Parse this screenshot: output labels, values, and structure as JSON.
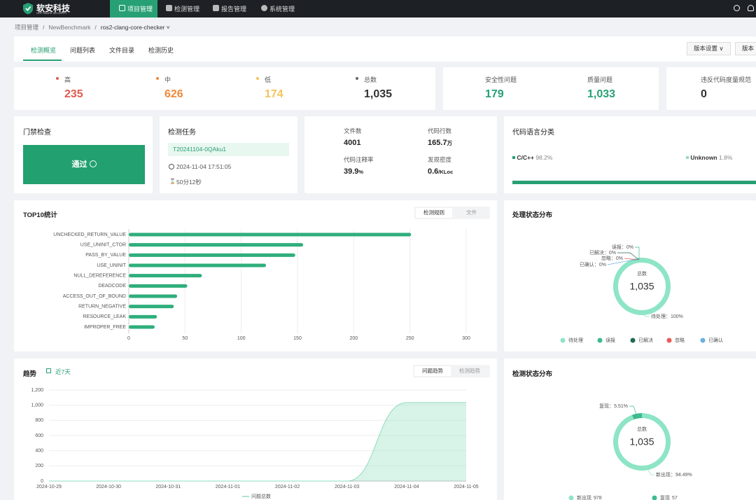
{
  "nav": {
    "brand": "软安科技",
    "brand_sub": "SOFTWARE SECURITY",
    "items": [
      "项目管理",
      "检测管理",
      "报告管理",
      "系统管理"
    ]
  },
  "breadcrumb": [
    "项目管理",
    "NewBenchmark",
    "ros2-clang-core-checker"
  ],
  "tabs": [
    "检测概览",
    "问题列表",
    "文件目录",
    "检测历史"
  ],
  "actions": [
    "版本设置",
    "版本"
  ],
  "severity": [
    {
      "label": "高",
      "value": "235"
    },
    {
      "label": "中",
      "value": "626"
    },
    {
      "label": "低",
      "value": "174"
    },
    {
      "label": "总数",
      "value": "1,035"
    }
  ],
  "category": [
    {
      "label": "安全性问题",
      "value": "179"
    },
    {
      "label": "质量问题",
      "value": "1,033"
    }
  ],
  "metrics_violation": {
    "label": "违反代码度量规范",
    "value": "0"
  },
  "gate": {
    "title": "门禁检查",
    "result": "通过"
  },
  "task": {
    "title": "检测任务",
    "id": "T20241104-0QAku1",
    "time": "2024-11-04 17:51:05",
    "duration": "50分12秒"
  },
  "stats": [
    {
      "label": "文件数",
      "value": "4001"
    },
    {
      "label": "代码行数",
      "value": "165.7",
      "unit": "万"
    },
    {
      "label": "代码注释率",
      "value": "39.9",
      "unit": "%"
    },
    {
      "label": "发现密度",
      "value": "0.6",
      "unit": "/KLoc"
    }
  ],
  "languages": {
    "title": "代码语言分类",
    "items": [
      {
        "name": "C/C++",
        "label": "98.2%",
        "value": 98.2,
        "color": "#27a074"
      },
      {
        "name": "Unknown",
        "label": "1.8%",
        "value": 1.8,
        "color": "#9ad9bf"
      }
    ]
  },
  "top10": {
    "title": "TOP10统计",
    "toggle": [
      "检测规则",
      "文件"
    ]
  },
  "trend": {
    "title": "趋势",
    "range": "近7天",
    "toggle": [
      "问题趋势",
      "检测趋势"
    ]
  },
  "chart_data": [
    {
      "type": "bar",
      "orientation": "horizontal",
      "categories": [
        "UNCHECKED_RETURN_VALUE",
        "USE_UNINIT_CTOR",
        "PASS_BY_VALUE",
        "USE_UNINIT",
        "NULL_DEREFERENCE",
        "DEADCODE",
        "ACCESS_OUT_OF_BOUND",
        "RETURN_NEGATIVE",
        "RESOURCE_LEAK",
        "IMPROPER_FREE"
      ],
      "values": [
        251,
        155,
        148,
        122,
        65,
        52,
        43,
        40,
        25,
        23
      ],
      "color": "#2fae7c",
      "xlim": [
        0,
        300
      ],
      "xticks": [
        0,
        50,
        100,
        150,
        200,
        250,
        300
      ],
      "grid": true
    },
    {
      "type": "area",
      "categories": [
        "2024-10-29",
        "2024-10-30",
        "2024-10-31",
        "2024-11-01",
        "2024-11-02",
        "2024-11-03",
        "2024-11-04",
        "2024-11-05"
      ],
      "series": [
        {
          "name": "问题总数",
          "color": "#8fdcbc",
          "values": [
            0,
            0,
            0,
            0,
            0,
            0,
            1035,
            1035
          ]
        }
      ],
      "ylim": [
        0,
        1200
      ],
      "yticks": [
        0,
        200,
        400,
        600,
        800,
        {
          "value": 1000,
          "label": "1,000"
        },
        {
          "value": 1200,
          "label": "1,200"
        }
      ],
      "grid": true
    },
    {
      "type": "pie",
      "title": "处理状态分布",
      "categories": [
        "待处理",
        "误报",
        "已解决",
        "忽略",
        "已确认"
      ],
      "values": [
        100,
        0,
        0,
        0,
        0
      ],
      "value_labels": [
        "待处理：100%",
        "误报：0%",
        "已解决：0%",
        "忽略：0%",
        "已确认：0%"
      ],
      "colors": [
        "#8de5c6",
        "#3dba8e",
        "#1f6b4f",
        "#e85a5a",
        "#6cb0e0"
      ],
      "total_name": "总数",
      "total": {
        "value": 1035,
        "label": "1,035"
      }
    },
    {
      "type": "pie",
      "title": "检测状态分布",
      "categories": [
        "新出现",
        "复现"
      ],
      "values": [
        94.49,
        5.51
      ],
      "value_labels": [
        "新出现：94.49%",
        "复现：5.51%"
      ],
      "counts": [
        978,
        57
      ],
      "colors": [
        "#8de5c6",
        "#3dba8e"
      ],
      "total_name": "总数",
      "total": {
        "value": 1035,
        "label": "1,035"
      }
    }
  ]
}
